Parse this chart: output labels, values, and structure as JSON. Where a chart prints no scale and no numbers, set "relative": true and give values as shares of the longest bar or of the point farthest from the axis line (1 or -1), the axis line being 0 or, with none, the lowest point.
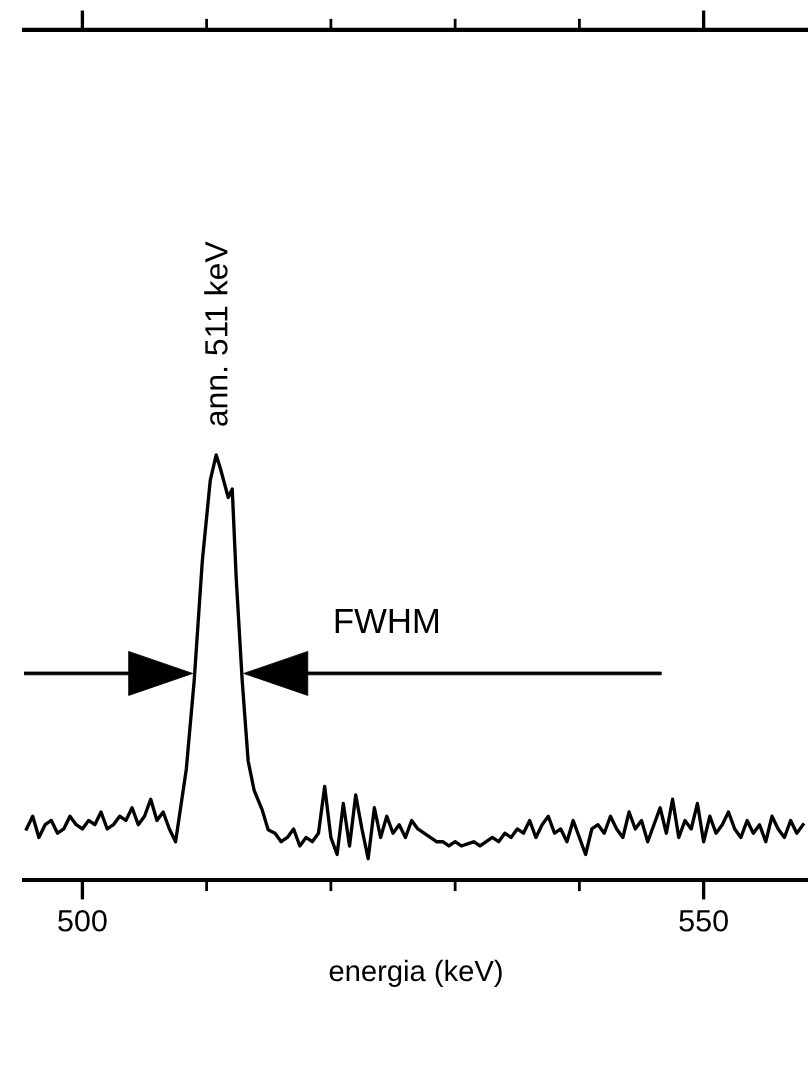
{
  "chart_data": {
    "type": "line",
    "relative": true,
    "xlabel": "energia (keV)",
    "xlim": [
      495.3,
      558.4
    ],
    "xticks": [
      500,
      {
        "value": 510,
        "label": null
      },
      {
        "value": 520,
        "label": null
      },
      {
        "value": 530,
        "label": null
      },
      {
        "value": 540,
        "label": null
      },
      550
    ],
    "grid": false,
    "marker": "none",
    "line_style": "solid",
    "annotations": [
      {
        "text": "ann. 511 keV",
        "x": 511,
        "y": 1
      },
      "FWHM"
    ],
    "series": [
      {
        "color": "#000000",
        "x": [
          495.5,
          496,
          496.5,
          497,
          497.5,
          498,
          498.5,
          499,
          499.5,
          500,
          500.5,
          501,
          501.5,
          502,
          502.5,
          503,
          503.5,
          504,
          504.5,
          505,
          505.5,
          506,
          506.5,
          507,
          507.5,
          508.36,
          509.0,
          509.65,
          510.29,
          510.77,
          511.09,
          511.74,
          512.06,
          512.38,
          512.86,
          513.34,
          513.83,
          514.47,
          514.95,
          515.5,
          516,
          516.5,
          517,
          517.5,
          518,
          518.5,
          519,
          519.5,
          520,
          520.5,
          521,
          521.5,
          522,
          522.5,
          523,
          523.5,
          524,
          524.5,
          525,
          525.5,
          526,
          526.5,
          527,
          527.5,
          528,
          528.5,
          529,
          529.5,
          530,
          530.5,
          531,
          531.5,
          532,
          532.5,
          533,
          533.5,
          534,
          534.5,
          535,
          535.5,
          536,
          536.5,
          537,
          537.5,
          538,
          538.5,
          539,
          539.5,
          540,
          540.5,
          541,
          541.5,
          542,
          542.5,
          543,
          543.5,
          544,
          544.5,
          545,
          545.5,
          546,
          546.5,
          547,
          547.5,
          548,
          548.5,
          549,
          549.5,
          550,
          550.5,
          551,
          551.5,
          552,
          552.5,
          553,
          553.5,
          554,
          554.5,
          555,
          555.5,
          556,
          556.5,
          557,
          557.5,
          558
        ],
        "values": [
          0.12,
          0.15,
          0.1,
          0.13,
          0.14,
          0.11,
          0.12,
          0.15,
          0.13,
          0.12,
          0.14,
          0.13,
          0.16,
          0.12,
          0.13,
          0.15,
          0.14,
          0.17,
          0.13,
          0.15,
          0.19,
          0.14,
          0.16,
          0.12,
          0.09,
          0.26,
          0.47,
          0.75,
          0.94,
          1.0,
          0.97,
          0.9,
          0.92,
          0.71,
          0.47,
          0.28,
          0.21,
          0.165,
          0.118,
          0.11,
          0.09,
          0.1,
          0.12,
          0.08,
          0.1,
          0.09,
          0.11,
          0.22,
          0.1,
          0.06,
          0.18,
          0.08,
          0.2,
          0.12,
          0.05,
          0.17,
          0.1,
          0.15,
          0.11,
          0.13,
          0.1,
          0.14,
          0.12,
          0.11,
          0.1,
          0.09,
          0.09,
          0.08,
          0.09,
          0.08,
          0.085,
          0.09,
          0.08,
          0.09,
          0.1,
          0.09,
          0.11,
          0.1,
          0.12,
          0.11,
          0.14,
          0.1,
          0.13,
          0.15,
          0.11,
          0.12,
          0.09,
          0.14,
          0.1,
          0.06,
          0.12,
          0.13,
          0.11,
          0.15,
          0.12,
          0.1,
          0.16,
          0.12,
          0.14,
          0.09,
          0.13,
          0.17,
          0.11,
          0.19,
          0.1,
          0.14,
          0.12,
          0.18,
          0.09,
          0.15,
          0.11,
          0.13,
          0.16,
          0.12,
          0.1,
          0.14,
          0.11,
          0.13,
          0.09,
          0.15,
          0.12,
          0.1,
          0.14,
          0.11,
          0.13
        ]
      }
    ]
  }
}
